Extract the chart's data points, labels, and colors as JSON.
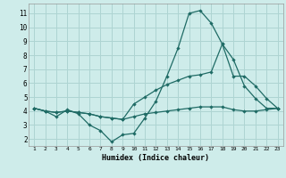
{
  "xlabel": "Humidex (Indice chaleur)",
  "bg_color": "#ceecea",
  "grid_color": "#aed4d2",
  "line_color": "#1f6b65",
  "xlim": [
    0.5,
    23.5
  ],
  "ylim": [
    1.5,
    11.7
  ],
  "xticks": [
    1,
    2,
    3,
    4,
    5,
    6,
    7,
    8,
    9,
    10,
    11,
    12,
    13,
    14,
    15,
    16,
    17,
    18,
    19,
    20,
    21,
    22,
    23
  ],
  "yticks": [
    2,
    3,
    4,
    5,
    6,
    7,
    8,
    9,
    10,
    11
  ],
  "line1_x": [
    1,
    2,
    3,
    4,
    5,
    6,
    7,
    8,
    9,
    10,
    11,
    12,
    13,
    14,
    15,
    16,
    17,
    18,
    19,
    20,
    21,
    22,
    23
  ],
  "line1_y": [
    4.2,
    4.0,
    3.6,
    4.1,
    3.8,
    3.0,
    2.6,
    1.8,
    2.3,
    2.4,
    3.5,
    4.7,
    6.5,
    8.5,
    11.0,
    11.2,
    10.3,
    8.8,
    7.7,
    5.8,
    4.9,
    4.2,
    4.2
  ],
  "line2_x": [
    1,
    2,
    3,
    4,
    5,
    6,
    7,
    8,
    9,
    10,
    11,
    12,
    13,
    14,
    15,
    16,
    17,
    18,
    19,
    20,
    21,
    22,
    23
  ],
  "line2_y": [
    4.2,
    4.0,
    3.9,
    4.0,
    3.9,
    3.8,
    3.6,
    3.5,
    3.4,
    4.5,
    5.0,
    5.5,
    5.9,
    6.2,
    6.5,
    6.6,
    6.8,
    8.8,
    6.5,
    6.5,
    5.8,
    4.9,
    4.2
  ],
  "line3_x": [
    1,
    2,
    3,
    4,
    5,
    6,
    7,
    8,
    9,
    10,
    11,
    12,
    13,
    14,
    15,
    16,
    17,
    18,
    19,
    20,
    21,
    22,
    23
  ],
  "line3_y": [
    4.2,
    4.0,
    3.9,
    4.0,
    3.9,
    3.8,
    3.6,
    3.5,
    3.4,
    3.6,
    3.8,
    3.9,
    4.0,
    4.1,
    4.2,
    4.3,
    4.3,
    4.3,
    4.1,
    4.0,
    4.0,
    4.1,
    4.2
  ]
}
